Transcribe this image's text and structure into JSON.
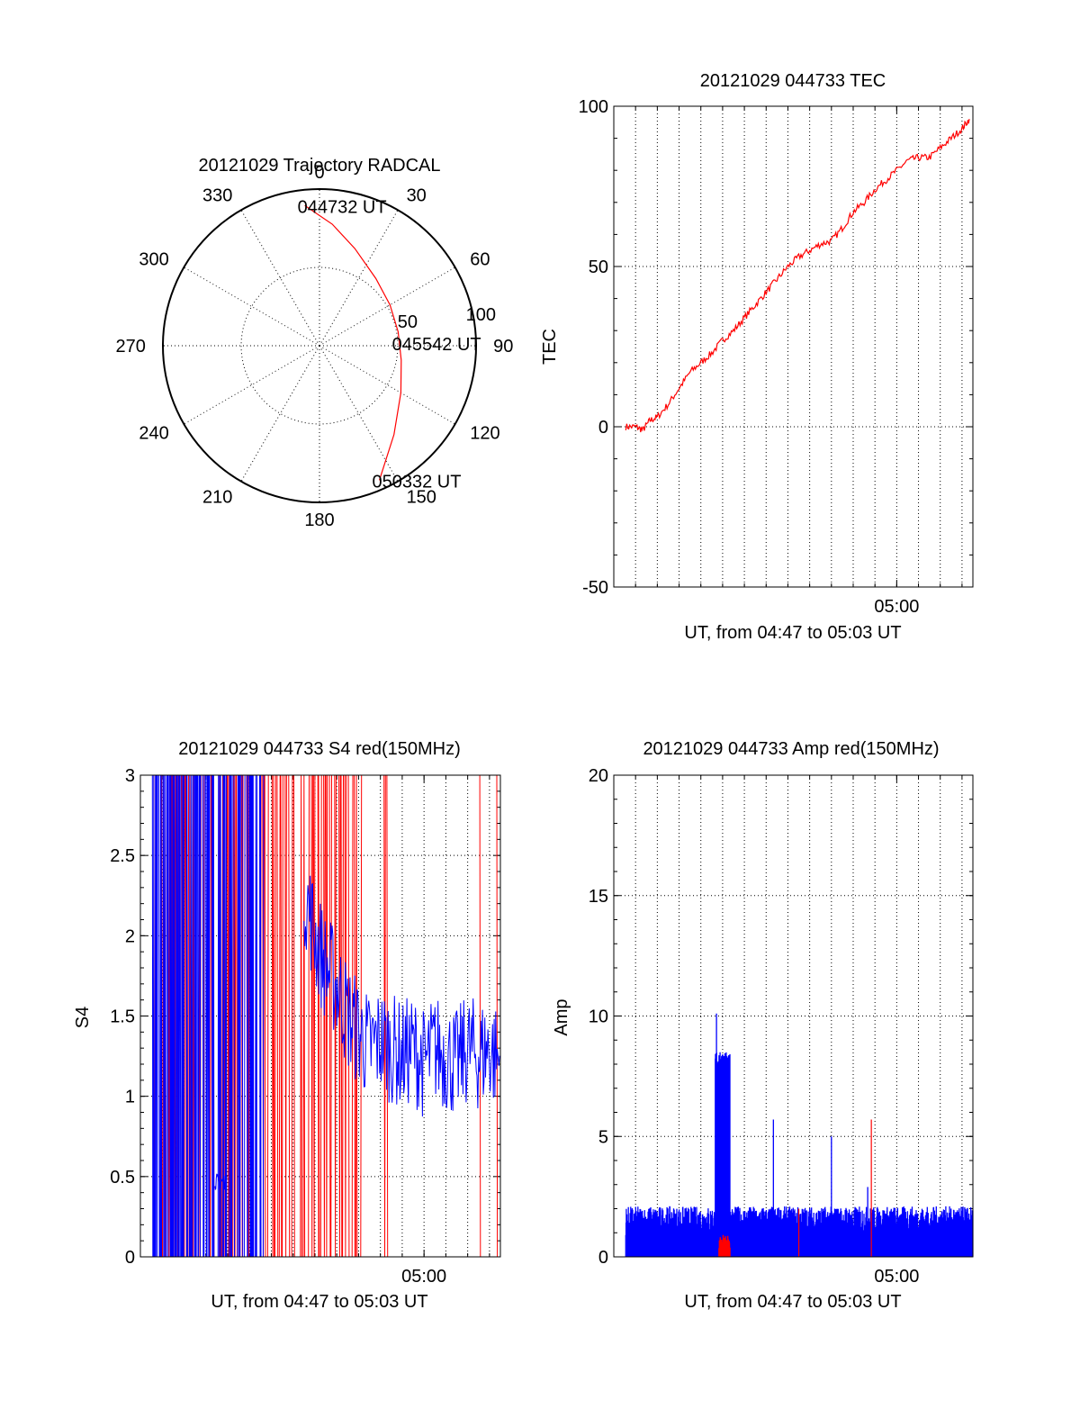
{
  "colors": {
    "red": "#ff0000",
    "blue": "#0000ff",
    "axis": "#000000"
  },
  "chart_data": [
    {
      "type": "polar",
      "title": "20121029 Trajectory RADCAL",
      "angle_labels": [
        "0",
        "30",
        "60",
        "90",
        "120",
        "150",
        "180",
        "210",
        "240",
        "270",
        "300",
        "330"
      ],
      "radial_ticks": [
        50,
        100
      ],
      "radial_labels": [
        "50",
        "100"
      ],
      "rmax": 100,
      "trajectory": [
        {
          "az": 354,
          "r": 90
        },
        {
          "az": 6,
          "r": 78
        },
        {
          "az": 20,
          "r": 66
        },
        {
          "az": 40,
          "r": 56
        },
        {
          "az": 60,
          "r": 52
        },
        {
          "az": 80,
          "r": 51
        },
        {
          "az": 100,
          "r": 53
        },
        {
          "az": 120,
          "r": 60
        },
        {
          "az": 140,
          "r": 74
        },
        {
          "az": 156,
          "r": 94
        }
      ],
      "point_labels": [
        {
          "text": "044732 UT",
          "az": 354,
          "r": 90
        },
        {
          "text": "045542 UT",
          "az": 88,
          "r": 51
        },
        {
          "text": "050332 UT",
          "az": 156,
          "r": 94
        }
      ]
    },
    {
      "type": "line",
      "title": "20121029 044733 TEC",
      "xlabel": "UT, from 04:47 to 05:03 UT",
      "ylabel": "TEC",
      "xlim": [
        "04:47:00",
        "05:03:30"
      ],
      "ylim": [
        -50,
        100
      ],
      "yticks": [
        -50,
        0,
        50,
        100
      ],
      "xtick_labels": [
        {
          "value": "05:00:00",
          "label": "05:00"
        }
      ],
      "grid_minutes": [
        "04:48",
        "04:49",
        "04:50",
        "04:51",
        "04:52",
        "04:53",
        "04:54",
        "04:55",
        "04:56",
        "04:57",
        "04:58",
        "04:59",
        "05:00",
        "05:01",
        "05:02",
        "05:03"
      ],
      "series": [
        {
          "color": "#ff0000",
          "points": [
            [
              "04:47:33",
              0
            ],
            [
              "04:48:00",
              0
            ],
            [
              "04:48:20",
              -1
            ],
            [
              "04:48:40",
              2
            ],
            [
              "04:49:00",
              3
            ],
            [
              "04:49:30",
              7
            ],
            [
              "04:50:00",
              12
            ],
            [
              "04:50:30",
              17
            ],
            [
              "04:51:00",
              20
            ],
            [
              "04:51:30",
              23
            ],
            [
              "04:52:00",
              27
            ],
            [
              "04:52:30",
              30
            ],
            [
              "04:53:00",
              34
            ],
            [
              "04:53:30",
              38
            ],
            [
              "04:54:00",
              42
            ],
            [
              "04:54:30",
              46
            ],
            [
              "04:55:00",
              50
            ],
            [
              "04:55:30",
              53
            ],
            [
              "04:56:00",
              55
            ],
            [
              "04:56:30",
              57
            ],
            [
              "04:57:00",
              58
            ],
            [
              "04:57:30",
              62
            ],
            [
              "04:58:00",
              67
            ],
            [
              "04:58:30",
              70
            ],
            [
              "04:59:00",
              74
            ],
            [
              "04:59:30",
              77
            ],
            [
              "05:00:00",
              80
            ],
            [
              "05:00:30",
              83
            ],
            [
              "05:01:00",
              84
            ],
            [
              "05:01:30",
              84
            ],
            [
              "05:02:00",
              87
            ],
            [
              "05:02:30",
              90
            ],
            [
              "05:03:00",
              93
            ],
            [
              "05:03:20",
              96
            ]
          ]
        }
      ]
    },
    {
      "type": "line",
      "title": "20121029 044733 S4 red(150MHz)",
      "xlabel": "UT, from 04:47 to 05:03 UT",
      "ylabel": "S4",
      "xlim": [
        "04:47:00",
        "05:03:30"
      ],
      "ylim": [
        0,
        3
      ],
      "yticks": [
        0,
        0.5,
        1,
        1.5,
        2,
        2.5,
        3
      ],
      "ytick_labels": [
        "0",
        "0.5",
        "1",
        "1.5",
        "2",
        "2.5",
        "3"
      ],
      "xtick_labels": [
        {
          "value": "05:00:00",
          "label": "05:00"
        }
      ],
      "grid_minutes": [
        "04:48",
        "04:49",
        "04:50",
        "04:51",
        "04:52",
        "04:53",
        "04:54",
        "04:55",
        "04:56",
        "04:57",
        "04:58",
        "04:59",
        "05:00",
        "05:01",
        "05:02",
        "05:03"
      ],
      "series": [
        {
          "color": "#ff0000",
          "segments": [
            [
              "04:47:33",
              "04:52:00",
              0,
              3
            ],
            [
              "04:52:30",
              "04:55:10",
              0,
              3
            ],
            [
              "04:55:10",
              "04:57:10",
              0,
              3
            ],
            [
              "04:58:10",
              "04:58:20",
              0,
              3
            ],
            [
              "05:02:30",
              "05:02:35",
              0,
              3
            ],
            [
              "05:03:20",
              "05:03:25",
              0,
              3
            ]
          ]
        },
        {
          "color": "#0000ff",
          "segments": [
            [
              "04:47:33",
              "04:49:30",
              0,
              3
            ],
            [
              "04:49:30",
              "04:51:45",
              0,
              3
            ],
            [
              "04:51:45",
              "04:52:40",
              0,
              3
            ],
            [
              "04:50:25",
              "04:50:55",
              0.42,
              0.52
            ]
          ],
          "points": [
            [
              "04:54:30",
              2.3
            ],
            [
              "04:55:00",
              2.0
            ],
            [
              "04:55:30",
              1.8
            ],
            [
              "04:56:00",
              1.7
            ],
            [
              "04:56:30",
              1.5
            ],
            [
              "04:57:00",
              1.4
            ],
            [
              "04:57:30",
              1.3
            ],
            [
              "04:58:00",
              1.35
            ],
            [
              "04:58:30",
              1.3
            ],
            [
              "04:59:00",
              1.25
            ],
            [
              "04:59:30",
              1.3
            ],
            [
              "05:00:00",
              1.2
            ],
            [
              "05:00:30",
              1.3
            ],
            [
              "05:01:00",
              1.25
            ],
            [
              "05:01:30",
              1.2
            ],
            [
              "05:02:00",
              1.3
            ],
            [
              "05:02:30",
              1.25
            ],
            [
              "05:03:00",
              1.3
            ],
            [
              "05:03:30",
              1.2
            ]
          ],
          "noise": 0.35
        }
      ]
    },
    {
      "type": "line",
      "title": "20121029 044733 Amp red(150MHz)",
      "xlabel": "UT, from 04:47 to 05:03 UT",
      "ylabel": "Amp",
      "xlim": [
        "04:47:00",
        "05:03:30"
      ],
      "ylim": [
        0,
        20
      ],
      "yticks": [
        0,
        5,
        10,
        15,
        20
      ],
      "xtick_labels": [
        {
          "value": "05:00:00",
          "label": "05:00"
        }
      ],
      "grid_minutes": [
        "04:48",
        "04:49",
        "04:50",
        "04:51",
        "04:52",
        "04:53",
        "04:54",
        "04:55",
        "04:56",
        "04:57",
        "04:58",
        "04:59",
        "05:00",
        "05:01",
        "05:02",
        "05:03"
      ],
      "series": [
        {
          "color": "#0000ff",
          "baseline": 1.5,
          "noise": 0.6,
          "burst": {
            "start": "04:51:40",
            "end": "04:52:20",
            "level": 7.8,
            "peak": 10.1
          },
          "spikes": [
            [
              "04:54:20",
              5.7
            ],
            [
              "04:57:00",
              5.0
            ],
            [
              "04:58:40",
              2.9
            ]
          ]
        },
        {
          "color": "#ff0000",
          "burst": {
            "start": "04:51:50",
            "end": "04:52:20",
            "level": 0.7
          },
          "spikes": [
            [
              "04:55:30",
              2.0
            ],
            [
              "04:58:50",
              5.7
            ]
          ]
        }
      ]
    }
  ]
}
